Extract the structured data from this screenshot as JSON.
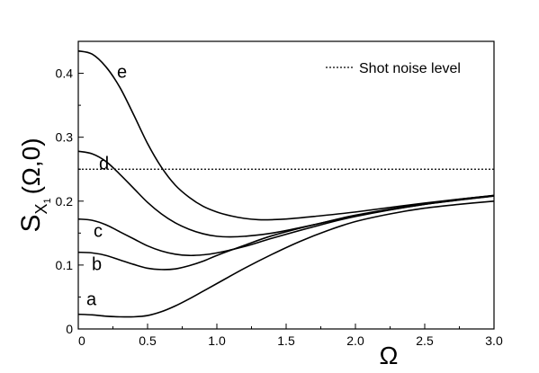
{
  "chart_data": {
    "type": "line",
    "xlabel": "Ω",
    "ylabel": {
      "main": "S",
      "sub": "X",
      "subsub": "1",
      "args": "(Ω,0)"
    },
    "xlim": [
      0,
      3.0
    ],
    "ylim": [
      0,
      0.45
    ],
    "x_ticks": [
      "0",
      "0.5",
      "1.0",
      "1.5",
      "2.0",
      "2.5",
      "3.0"
    ],
    "y_ticks": [
      "0",
      "0.1",
      "0.2",
      "0.3",
      "0.4"
    ],
    "grid": false,
    "legend": {
      "position": "top-right",
      "entries": [
        {
          "label": "Shot noise level",
          "style": "dotted"
        }
      ]
    },
    "shot_noise_level": 0.25,
    "series": [
      {
        "label": "e",
        "x": [
          0,
          0.1,
          0.2,
          0.3,
          0.4,
          0.5,
          0.6,
          0.7,
          0.8,
          0.9,
          1.0,
          1.1,
          1.2,
          1.3,
          1.4,
          1.5,
          1.7,
          2.0,
          2.5,
          3.0
        ],
        "y": [
          0.435,
          0.43,
          0.41,
          0.378,
          0.335,
          0.29,
          0.253,
          0.225,
          0.206,
          0.192,
          0.183,
          0.177,
          0.173,
          0.171,
          0.171,
          0.172,
          0.176,
          0.183,
          0.197,
          0.209
        ]
      },
      {
        "label": "d",
        "x": [
          0,
          0.1,
          0.2,
          0.3,
          0.4,
          0.5,
          0.6,
          0.7,
          0.8,
          0.9,
          1.0,
          1.1,
          1.2,
          1.4,
          1.7,
          2.0,
          2.5,
          3.0
        ],
        "y": [
          0.278,
          0.274,
          0.262,
          0.242,
          0.22,
          0.198,
          0.18,
          0.166,
          0.156,
          0.149,
          0.145,
          0.144,
          0.145,
          0.15,
          0.163,
          0.178,
          0.196,
          0.209
        ]
      },
      {
        "label": "c",
        "x": [
          0,
          0.1,
          0.2,
          0.3,
          0.4,
          0.5,
          0.6,
          0.7,
          0.8,
          0.9,
          1.0,
          1.2,
          1.4,
          1.7,
          2.0,
          2.5,
          3.0
        ],
        "y": [
          0.172,
          0.17,
          0.163,
          0.152,
          0.141,
          0.13,
          0.122,
          0.117,
          0.115,
          0.116,
          0.119,
          0.129,
          0.142,
          0.16,
          0.176,
          0.195,
          0.208
        ]
      },
      {
        "label": "b",
        "x": [
          0,
          0.1,
          0.2,
          0.3,
          0.4,
          0.5,
          0.6,
          0.7,
          0.8,
          0.9,
          1.0,
          1.2,
          1.4,
          1.7,
          2.0,
          2.5,
          3.0
        ],
        "y": [
          0.12,
          0.119,
          0.115,
          0.108,
          0.101,
          0.095,
          0.093,
          0.094,
          0.099,
          0.106,
          0.115,
          0.131,
          0.146,
          0.163,
          0.177,
          0.195,
          0.208
        ]
      },
      {
        "label": "a",
        "x": [
          0,
          0.1,
          0.2,
          0.3,
          0.4,
          0.5,
          0.6,
          0.7,
          0.8,
          0.9,
          1.0,
          1.2,
          1.4,
          1.6,
          1.8,
          2.0,
          2.25,
          2.5,
          2.75,
          3.0
        ],
        "y": [
          0.023,
          0.022,
          0.02,
          0.019,
          0.019,
          0.021,
          0.027,
          0.036,
          0.047,
          0.059,
          0.071,
          0.095,
          0.117,
          0.137,
          0.154,
          0.168,
          0.18,
          0.189,
          0.195,
          0.2
        ]
      }
    ]
  }
}
